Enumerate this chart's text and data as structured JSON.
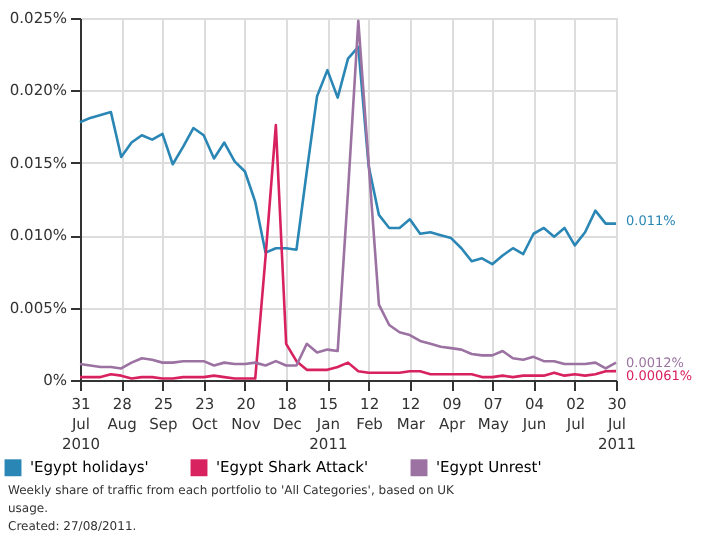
{
  "chart_data": {
    "type": "line",
    "x": [
      "2010-07-31",
      "2010-08-07",
      "2010-08-14",
      "2010-08-21",
      "2010-08-28",
      "2010-09-04",
      "2010-09-11",
      "2010-09-18",
      "2010-09-25",
      "2010-10-02",
      "2010-10-09",
      "2010-10-16",
      "2010-10-23",
      "2010-10-30",
      "2010-11-06",
      "2010-11-13",
      "2010-11-20",
      "2010-11-27",
      "2010-12-04",
      "2010-12-11",
      "2010-12-18",
      "2010-12-25",
      "2011-01-01",
      "2011-01-08",
      "2011-01-15",
      "2011-01-22",
      "2011-01-29",
      "2011-02-05",
      "2011-02-12",
      "2011-02-19",
      "2011-02-26",
      "2011-03-05",
      "2011-03-12",
      "2011-03-19",
      "2011-03-26",
      "2011-04-02",
      "2011-04-09",
      "2011-04-16",
      "2011-04-23",
      "2011-04-30",
      "2011-05-07",
      "2011-05-14",
      "2011-05-21",
      "2011-05-28",
      "2011-06-04",
      "2011-06-11",
      "2011-06-18",
      "2011-06-25",
      "2011-07-02",
      "2011-07-09",
      "2011-07-16",
      "2011-07-23",
      "2011-07-30"
    ],
    "series": [
      {
        "name": "'Egypt holidays'",
        "color": "#2a86b4",
        "values": [
          0.0178,
          0.0181,
          0.0183,
          0.0185,
          0.0154,
          0.0164,
          0.0169,
          0.0166,
          0.017,
          0.0149,
          0.0161,
          0.0174,
          0.0169,
          0.0153,
          0.0164,
          0.0151,
          0.0144,
          0.0123,
          0.0088,
          0.0091,
          0.0091,
          0.009,
          0.0144,
          0.0196,
          0.0214,
          0.0195,
          0.0222,
          0.023,
          0.0148,
          0.0114,
          0.0105,
          0.0105,
          0.0111,
          0.0101,
          0.0102,
          0.01,
          0.0098,
          0.0091,
          0.0082,
          0.0084,
          0.008,
          0.0086,
          0.0091,
          0.0087,
          0.0101,
          0.0105,
          0.0099,
          0.0105,
          0.0093,
          0.0102,
          0.0117,
          0.0108,
          0.0108
        ]
      },
      {
        "name": "'Egypt Shark Attack'",
        "color": "#d8215f",
        "values": [
          0.0002,
          0.0002,
          0.0002,
          0.0004,
          0.0003,
          0.0001,
          0.0002,
          0.0002,
          0.0001,
          0.0001,
          0.0002,
          0.0002,
          0.0002,
          0.0003,
          0.0002,
          0.0001,
          0.0001,
          0.0001,
          0.0085,
          0.0176,
          0.0025,
          0.0013,
          0.0007,
          0.0007,
          0.0007,
          0.0009,
          0.0012,
          0.0006,
          0.0005,
          0.0005,
          0.0005,
          0.0005,
          0.0006,
          0.0006,
          0.0004,
          0.0004,
          0.0004,
          0.0004,
          0.0004,
          0.0002,
          0.0002,
          0.0003,
          0.0002,
          0.0003,
          0.0003,
          0.0003,
          0.0005,
          0.0003,
          0.0004,
          0.0003,
          0.0004,
          0.0006,
          0.00061
        ]
      },
      {
        "name": "'Egypt Unrest'",
        "color": "#9b72a2",
        "values": [
          0.0011,
          0.001,
          0.0009,
          0.0009,
          0.0008,
          0.0012,
          0.0015,
          0.0014,
          0.0012,
          0.0012,
          0.0013,
          0.0013,
          0.0013,
          0.001,
          0.0012,
          0.0011,
          0.0011,
          0.0012,
          0.001,
          0.0013,
          0.001,
          0.001,
          0.0025,
          0.0019,
          0.0021,
          0.002,
          0.013,
          0.0248,
          0.015,
          0.0052,
          0.0038,
          0.0033,
          0.0031,
          0.0027,
          0.0025,
          0.0023,
          0.0022,
          0.0021,
          0.0018,
          0.0017,
          0.0017,
          0.002,
          0.0015,
          0.0014,
          0.0016,
          0.0013,
          0.0013,
          0.0011,
          0.0011,
          0.0011,
          0.0012,
          0.0008,
          0.0012
        ]
      }
    ],
    "xlim": [
      "2010-07-31",
      "2011-07-30"
    ],
    "xticks": [
      {
        "value": "2010-07-31",
        "label": "31 Jul 2010"
      },
      {
        "value": "2010-08-28",
        "label": "28 Aug"
      },
      {
        "value": "2010-09-25",
        "label": "25 Sep"
      },
      {
        "value": "2010-10-23",
        "label": "23 Oct"
      },
      {
        "value": "2010-11-20",
        "label": "20 Nov"
      },
      {
        "value": "2010-12-18",
        "label": "18 Dec"
      },
      {
        "value": "2011-01-15",
        "label": "15 Jan 2011"
      },
      {
        "value": "2011-02-12",
        "label": "12 Feb"
      },
      {
        "value": "2011-03-12",
        "label": "12 Mar"
      },
      {
        "value": "2011-04-09",
        "label": "09 Apr"
      },
      {
        "value": "2011-05-07",
        "label": "07 May"
      },
      {
        "value": "2011-06-04",
        "label": "04 Jun"
      },
      {
        "value": "2011-07-02",
        "label": "02 Jul"
      },
      {
        "value": "2011-07-30",
        "label": "30 Jul 2011"
      }
    ],
    "ylim": [
      0,
      0.025
    ],
    "yticks": [
      {
        "value": 0,
        "label": "0%"
      },
      {
        "value": 0.005,
        "label": "0.005%"
      },
      {
        "value": 0.01,
        "label": "0.010%"
      },
      {
        "value": 0.015,
        "label": "0.015%"
      },
      {
        "value": 0.02,
        "label": "0.020%"
      },
      {
        "value": 0.025,
        "label": "0.025%"
      }
    ],
    "grid": true,
    "legend": "bottom",
    "marker": "none",
    "line_style": "solid",
    "annotations": [
      {
        "text": "0.011%",
        "x": "2011-07-30",
        "y": 0.011
      },
      {
        "text": "0.0012%",
        "x": "2011-07-30",
        "y": 0.0012
      },
      {
        "text": "0.00061%",
        "x": "2011-07-30",
        "y": 0.00061
      },
      "Weekly share of traffic from each portfolio to 'All Categories', based on UK usage.",
      "Created: 27/08/2011."
    ]
  }
}
